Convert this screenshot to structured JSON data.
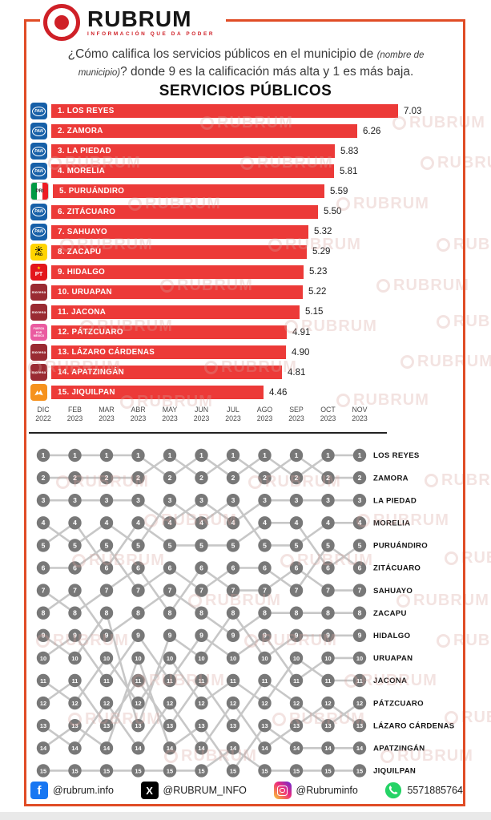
{
  "brand": {
    "name": "RUBRUM",
    "tagline": "INFORMACIÓN QUE DA PODER"
  },
  "question": {
    "seg1": "¿Cómo califica los servicios públicos en el municipio de ",
    "seg2": "(nombre de municipio)",
    "seg3": "? donde 9 es la calificación más alta y 1 es más baja."
  },
  "colors": {
    "bar_red": "#ec3a38",
    "frame_orange": "#e04c26",
    "brand_red": "#cf2027",
    "bump_node_gray": "#787878",
    "bump_line_gray": "#c7c7c7"
  },
  "party_styles": {
    "PAN": {
      "bg": "#1760a8",
      "fg": "#ffffff",
      "label": "PAN"
    },
    "PRI": {
      "bg": "#ffffff",
      "green": "#009a44",
      "red": "#ed1c24",
      "label": "PRI"
    },
    "PRD": {
      "bg": "#ffd400",
      "fg": "#111111",
      "label": "PRD"
    },
    "PT": {
      "bg": "#e3161c",
      "fg": "#ffffff",
      "star": "#ffd400",
      "label": "PT"
    },
    "MORENA": {
      "bg": "#9a2b33",
      "fg": "#ffffff",
      "label": "morena"
    },
    "FXM": {
      "bg": "#ea5ba0",
      "fg": "#ffffff",
      "label": "FUERZA POR MÉXICO"
    },
    "MC": {
      "bg": "#f6921e",
      "fg": "#ffffff",
      "label": "MC"
    }
  },
  "chart_data": [
    {
      "type": "bar",
      "title": "SERVICIOS PÚBLICOS",
      "orientation": "horizontal",
      "value_range": [
        1,
        9
      ],
      "bar_color": "#ec3a38",
      "items": [
        {
          "rank": 1,
          "label": "1. LOS REYES",
          "value": 7.03,
          "party": "PAN"
        },
        {
          "rank": 2,
          "label": "2. ZAMORA",
          "value": 6.26,
          "party": "PAN"
        },
        {
          "rank": 3,
          "label": "3. LA PIEDAD",
          "value": 5.83,
          "party": "PAN"
        },
        {
          "rank": 4,
          "label": "4. MORELIA",
          "value": 5.81,
          "party": "PAN"
        },
        {
          "rank": 5,
          "label": "5. PURUÁNDIRO",
          "value": 5.59,
          "party": "PRI"
        },
        {
          "rank": 6,
          "label": "6. ZITÁCUARO",
          "value": 5.5,
          "party": "PAN"
        },
        {
          "rank": 7,
          "label": "7. SAHUAYO",
          "value": 5.32,
          "party": "PAN"
        },
        {
          "rank": 8,
          "label": "8. ZACAPU",
          "value": 5.29,
          "party": "PRD"
        },
        {
          "rank": 9,
          "label": "9. HIDALGO",
          "value": 5.23,
          "party": "PT"
        },
        {
          "rank": 10,
          "label": "10. URUAPAN",
          "value": 5.22,
          "party": "MORENA"
        },
        {
          "rank": 11,
          "label": "11. JACONA",
          "value": 5.15,
          "party": "MORENA"
        },
        {
          "rank": 12,
          "label": "12. PÁTZCUARO",
          "value": 4.91,
          "party": "FXM"
        },
        {
          "rank": 13,
          "label": "13. LÁZARO CÁRDENAS",
          "value": 4.9,
          "party": "MORENA"
        },
        {
          "rank": 14,
          "label": "14. APATZINGÁN",
          "value": 4.81,
          "party": "MORENA"
        },
        {
          "rank": 15,
          "label": "15. JIQUILPAN",
          "value": 4.46,
          "party": "MC"
        }
      ]
    },
    {
      "type": "bump",
      "x_labels": [
        {
          "month": "DIC",
          "year": "2022"
        },
        {
          "month": "FEB",
          "year": "2023"
        },
        {
          "month": "MAR",
          "year": "2023"
        },
        {
          "month": "ABR",
          "year": "2023"
        },
        {
          "month": "MAY",
          "year": "2023"
        },
        {
          "month": "JUN",
          "year": "2023"
        },
        {
          "month": "JUL",
          "year": "2023"
        },
        {
          "month": "AGO",
          "year": "2023"
        },
        {
          "month": "SEP",
          "year": "2023"
        },
        {
          "month": "OCT",
          "year": "2023"
        },
        {
          "month": "NOV",
          "year": "2023"
        }
      ],
      "rank_range": [
        1,
        15
      ],
      "series": [
        {
          "name": "LOS REYES",
          "ranks": [
            1,
            1,
            1,
            1,
            2,
            1,
            2,
            1,
            2,
            1,
            1
          ]
        },
        {
          "name": "ZAMORA",
          "ranks": [
            2,
            2,
            2,
            2,
            1,
            2,
            1,
            2,
            1,
            2,
            2
          ]
        },
        {
          "name": "LA PIEDAD",
          "ranks": [
            3,
            3,
            3,
            3,
            4,
            3,
            4,
            3,
            3,
            3,
            3
          ]
        },
        {
          "name": "MORELIA",
          "ranks": [
            4,
            5,
            4,
            5,
            3,
            4,
            3,
            5,
            5,
            4,
            4
          ]
        },
        {
          "name": "PURUÁNDIRO",
          "ranks": [
            5,
            4,
            6,
            4,
            5,
            5,
            5,
            4,
            4,
            6,
            5
          ]
        },
        {
          "name": "ZITÁCUARO",
          "ranks": [
            6,
            6,
            5,
            7,
            6,
            7,
            6,
            6,
            7,
            5,
            6
          ]
        },
        {
          "name": "SAHUAYO",
          "ranks": [
            7,
            8,
            7,
            6,
            8,
            6,
            7,
            7,
            6,
            7,
            7
          ]
        },
        {
          "name": "ZACAPU",
          "ranks": [
            8,
            7,
            9,
            8,
            7,
            8,
            9,
            8,
            8,
            8,
            8
          ]
        },
        {
          "name": "HIDALGO",
          "ranks": [
            9,
            10,
            8,
            13,
            9,
            10,
            8,
            10,
            9,
            9,
            9
          ]
        },
        {
          "name": "URUAPAN",
          "ranks": [
            10,
            9,
            11,
            9,
            11,
            9,
            10,
            9,
            11,
            10,
            10
          ]
        },
        {
          "name": "JACONA",
          "ranks": [
            11,
            12,
            10,
            12,
            10,
            12,
            11,
            12,
            10,
            11,
            11
          ]
        },
        {
          "name": "PÁTZCUARO",
          "ranks": [
            12,
            11,
            13,
            11,
            13,
            11,
            13,
            11,
            12,
            13,
            12
          ]
        },
        {
          "name": "LÁZARO CÁRDENAS",
          "ranks": [
            13,
            14,
            12,
            14,
            12,
            14,
            12,
            14,
            13,
            12,
            13
          ]
        },
        {
          "name": "APATZINGÁN",
          "ranks": [
            14,
            13,
            14,
            10,
            14,
            13,
            15,
            13,
            14,
            14,
            14
          ]
        },
        {
          "name": "JIQUILPAN",
          "ranks": [
            15,
            15,
            15,
            15,
            15,
            15,
            14,
            15,
            15,
            15,
            15
          ]
        }
      ]
    }
  ],
  "footer": {
    "items": [
      {
        "network": "facebook",
        "handle": "@rubrum.info"
      },
      {
        "network": "x",
        "handle": "@RUBRUM_INFO"
      },
      {
        "network": "instagram",
        "handle": "@Rubruminfo"
      },
      {
        "network": "whatsapp",
        "handle": "5571885764"
      }
    ]
  },
  "watermark": {
    "text": "RUBRUM"
  }
}
